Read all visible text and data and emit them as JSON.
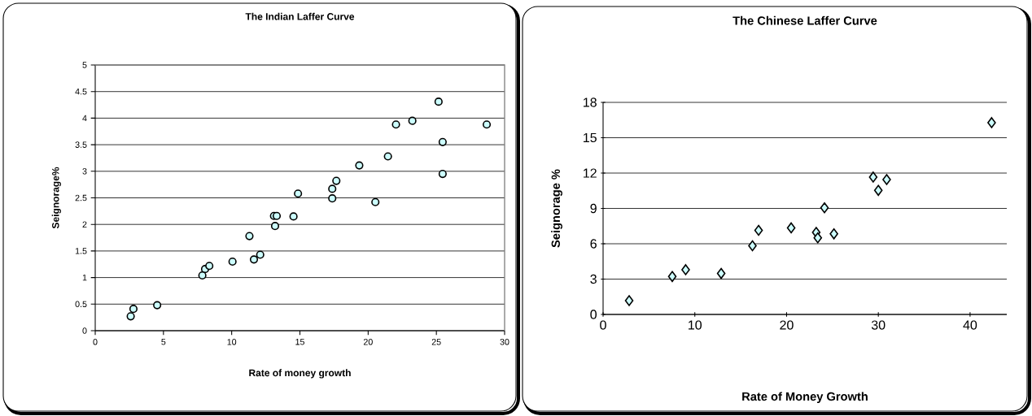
{
  "chart_data": [
    {
      "type": "scatter",
      "title": "The Indian Laffer Curve",
      "xlabel": "Rate of money growth",
      "ylabel": "Seignorage%",
      "x": [
        2.8,
        2.6,
        4.54,
        8.05,
        8.36,
        7.85,
        10.06,
        11.3,
        11.63,
        12.09,
        13.1,
        13.3,
        13.18,
        14.53,
        14.86,
        17.67,
        17.37,
        17.37,
        19.35,
        20.53,
        21.45,
        22.04,
        23.24,
        25.16,
        25.46,
        25.46,
        28.69
      ],
      "values": [
        0.41,
        0.27,
        0.48,
        1.16,
        1.22,
        1.04,
        1.3,
        1.78,
        1.34,
        1.43,
        2.16,
        2.16,
        1.97,
        2.15,
        2.58,
        2.82,
        2.67,
        2.49,
        3.11,
        2.42,
        3.28,
        3.88,
        3.95,
        4.31,
        3.55,
        2.95,
        3.88
      ],
      "color": "#ccffff",
      "marker": "circle",
      "grid": "y",
      "xlim": [
        0,
        30
      ],
      "xticks": [
        0,
        5,
        10,
        15,
        20,
        25,
        30
      ],
      "ylim": [
        0,
        5
      ],
      "yticks": [
        0,
        0.5,
        1,
        1.5,
        2,
        2.5,
        3,
        3.5,
        4,
        4.5,
        5
      ]
    },
    {
      "type": "scatter",
      "title": "The Chinese Laffer Curve",
      "xlabel": "Rate of Money Growth",
      "ylabel": "Seignorage %",
      "x": [
        2.84,
        7.54,
        9.0,
        12.87,
        16.28,
        16.95,
        20.5,
        23.23,
        23.4,
        24.13,
        25.16,
        29.44,
        30.0,
        30.91,
        42.35
      ],
      "values": [
        1.17,
        3.22,
        3.8,
        3.48,
        5.83,
        7.14,
        7.35,
        6.96,
        6.5,
        9.05,
        6.84,
        11.66,
        10.53,
        11.45,
        16.28
      ],
      "color": "#ccffff",
      "marker": "diamond",
      "grid": "y",
      "xlim": [
        0,
        44
      ],
      "xticks": [
        0,
        10,
        20,
        30,
        40
      ],
      "ylim": [
        0,
        18
      ],
      "yticks": [
        0,
        3,
        6,
        9,
        12,
        15,
        18
      ]
    }
  ]
}
